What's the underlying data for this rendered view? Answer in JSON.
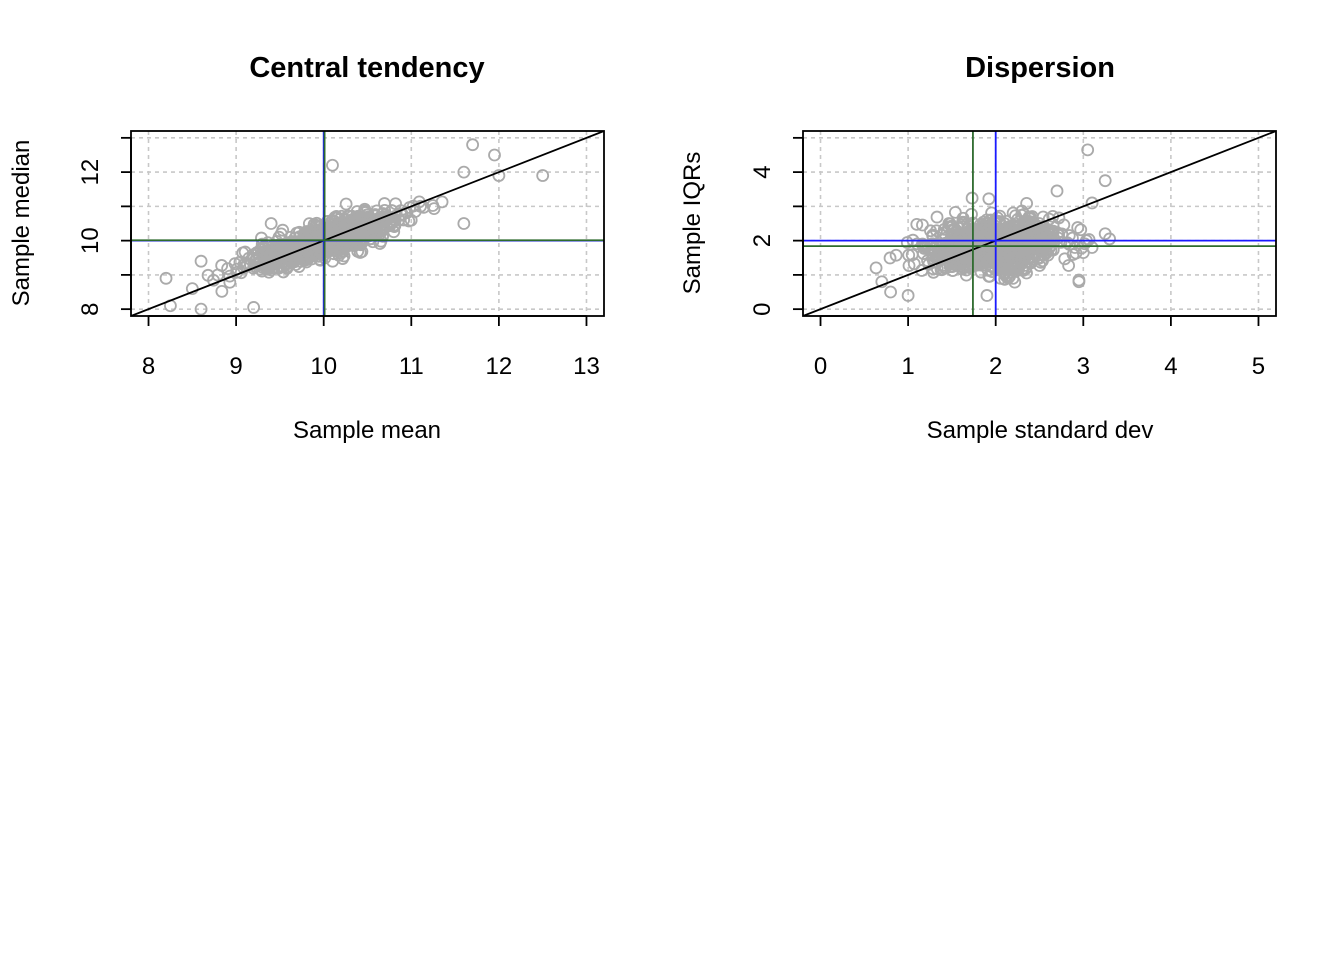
{
  "colors": {
    "points": "#aaaaaa",
    "grid": "#c8c8c8",
    "identity_line": "#000000",
    "blue_line": "#1a1aff",
    "green_line": "#2e6b2e"
  },
  "chart_data": [
    {
      "type": "scatter",
      "title": "Central tendency",
      "xlabel": "Sample mean",
      "ylabel": "Sample median",
      "xlim": [
        7.8,
        13.2
      ],
      "ylim": [
        7.8,
        13.2
      ],
      "x_ticks": [
        8,
        9,
        10,
        11,
        12,
        13
      ],
      "y_ticks": [
        8,
        10,
        12
      ],
      "y_minor_ticks": [
        9,
        11,
        13
      ],
      "grid": true,
      "reference_lines": {
        "identity": true,
        "vertical": [
          {
            "value": 10,
            "color": "blue"
          },
          {
            "value": 10.01,
            "color": "green"
          }
        ],
        "horizontal": [
          {
            "value": 10,
            "color": "blue"
          },
          {
            "value": 10.01,
            "color": "green"
          }
        ]
      },
      "point_cloud": {
        "n": 1000,
        "center": [
          10,
          10
        ],
        "sd_along_identity": 0.52,
        "sd_across_identity": 0.17,
        "seed": 7
      },
      "outliers": [
        [
          8.2,
          8.9
        ],
        [
          8.25,
          8.1
        ],
        [
          8.5,
          8.6
        ],
        [
          8.6,
          9.4
        ],
        [
          8.6,
          8.0
        ],
        [
          9.2,
          8.05
        ],
        [
          11.6,
          10.5
        ],
        [
          11.6,
          12.0
        ],
        [
          11.7,
          12.8
        ],
        [
          11.95,
          12.5
        ],
        [
          12.0,
          11.9
        ],
        [
          12.5,
          11.9
        ],
        [
          10.1,
          12.2
        ],
        [
          9.4,
          10.5
        ]
      ]
    },
    {
      "type": "scatter",
      "title": "Dispersion",
      "xlabel": "Sample standard dev",
      "ylabel": "Sample IQRs",
      "xlim": [
        -0.2,
        5.2
      ],
      "ylim": [
        -0.2,
        5.2
      ],
      "x_ticks": [
        0,
        1,
        2,
        3,
        4,
        5
      ],
      "y_ticks": [
        0,
        2,
        4
      ],
      "y_minor_ticks": [
        1,
        3,
        5
      ],
      "grid": true,
      "reference_lines": {
        "identity": true,
        "vertical": [
          {
            "value": 2,
            "color": "blue"
          },
          {
            "value": 1.74,
            "color": "green"
          }
        ],
        "horizontal": [
          {
            "value": 2,
            "color": "blue"
          },
          {
            "value": 1.84,
            "color": "green"
          }
        ]
      },
      "point_cloud": {
        "n": 1000,
        "center": [
          1.95,
          1.85
        ],
        "sd_along_identity": 0.4,
        "sd_across_identity": 0.33,
        "seed": 11
      },
      "outliers": [
        [
          0.7,
          0.8
        ],
        [
          0.8,
          0.5
        ],
        [
          1.0,
          0.4
        ],
        [
          1.9,
          0.4
        ],
        [
          2.95,
          0.8
        ],
        [
          2.95,
          0.85
        ],
        [
          3.0,
          1.65
        ],
        [
          3.1,
          1.8
        ],
        [
          3.25,
          2.2
        ],
        [
          3.3,
          2.05
        ],
        [
          3.1,
          3.1
        ],
        [
          3.25,
          3.75
        ],
        [
          3.05,
          4.65
        ],
        [
          2.7,
          3.45
        ]
      ]
    }
  ]
}
